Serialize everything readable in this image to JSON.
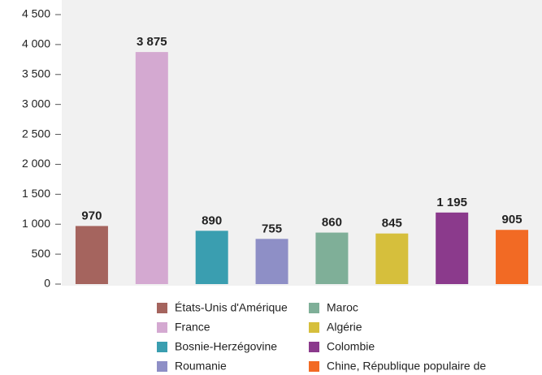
{
  "chart_data": {
    "type": "bar",
    "categories": [
      "États-Unis d'Amérique",
      "France",
      "Bosnie-Herzégovine",
      "Roumanie",
      "Maroc",
      "Algérie",
      "Colombie",
      "Chine, République populaire de"
    ],
    "values": [
      970,
      3875,
      890,
      755,
      860,
      845,
      1195,
      905
    ],
    "value_labels": [
      "970",
      "3 875",
      "890",
      "755",
      "860",
      "845",
      "1 195",
      "905"
    ],
    "colors": [
      "#a5645e",
      "#d4a9d1",
      "#3a9eb0",
      "#8e8fc6",
      "#7faf98",
      "#d6bf3c",
      "#8b3a8c",
      "#f26a24"
    ],
    "ylim": [
      0,
      4500
    ],
    "yticks": [
      0,
      500,
      {
        "value": 1000,
        "label": "1 000"
      },
      {
        "value": 1500,
        "label": "1 500"
      },
      {
        "value": 2000,
        "label": "2 000"
      },
      {
        "value": 2500,
        "label": "2 500"
      },
      {
        "value": 3000,
        "label": "3 000"
      },
      {
        "value": 3500,
        "label": "3 500"
      },
      {
        "value": 4000,
        "label": "4 000"
      },
      {
        "value": 4500,
        "label": "4 500"
      }
    ],
    "legend": "bottom"
  }
}
